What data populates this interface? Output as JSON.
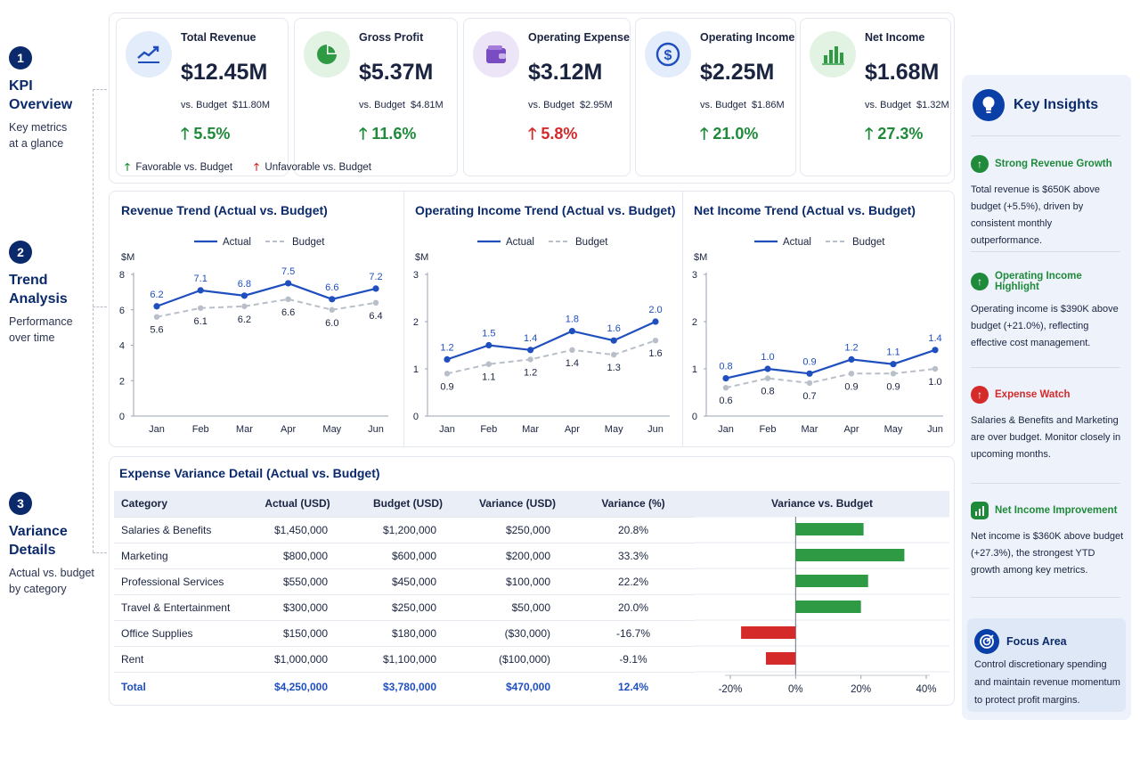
{
  "steps": [
    {
      "num": "1",
      "title": "KPI\nOverview",
      "subtitle": "Key metrics\nat a glance"
    },
    {
      "num": "2",
      "title": "Trend\nAnalysis",
      "subtitle": "Performance\nover time"
    },
    {
      "num": "3",
      "title": "Variance\nDetails",
      "subtitle": "Actual vs. budget\nby category"
    }
  ],
  "kpis": [
    {
      "title": "Total Revenue",
      "value": "$12.45M",
      "budget_label": "vs. Budget",
      "budget": "$11.80M",
      "change": "5.5%",
      "status": "favorable",
      "icon": "trend-line-icon"
    },
    {
      "title": "Gross Profit",
      "value": "$5.37M",
      "budget_label": "vs. Budget",
      "budget": "$4.81M",
      "change": "11.6%",
      "status": "favorable",
      "icon": "pie-chart-icon"
    },
    {
      "title": "Operating Expense",
      "value": "$3.12M",
      "budget_label": "vs. Budget",
      "budget": "$2.95M",
      "change": "5.8%",
      "status": "unfavorable",
      "icon": "wallet-icon"
    },
    {
      "title": "Operating Income",
      "value": "$2.25M",
      "budget_label": "vs. Budget",
      "budget": "$1.86M",
      "change": "21.0%",
      "status": "favorable",
      "icon": "dollar-circle-icon"
    },
    {
      "title": "Net Income",
      "value": "$1.68M",
      "budget_label": "vs. Budget",
      "budget": "$1.32M",
      "change": "27.3%",
      "status": "favorable",
      "icon": "bar-chart-icon"
    }
  ],
  "kpi_legend": {
    "favorable": "Favorable vs. Budget",
    "unfavorable": "Unfavorable vs. Budget"
  },
  "colors": {
    "favorable": "#1f8a3a",
    "unfavorable": "#d42a2a",
    "actual": "#1f4fbf",
    "budget": "#b9bfc9",
    "navy": "#0b2a6b"
  },
  "chart_data": [
    {
      "type": "line",
      "title": "Revenue Trend (Actual vs. Budget)",
      "ylabel": "$M",
      "categories": [
        "Jan",
        "Feb",
        "Mar",
        "Apr",
        "May",
        "Jun"
      ],
      "yticks": [
        "0",
        "2",
        "4",
        "6",
        "8"
      ],
      "ylim": [
        0,
        8
      ],
      "series": [
        {
          "name": "Actual",
          "values": [
            6.2,
            7.1,
            6.8,
            7.5,
            6.6,
            7.2
          ]
        },
        {
          "name": "Budget",
          "values": [
            5.6,
            6.1,
            6.2,
            6.6,
            6.0,
            6.4
          ]
        }
      ],
      "labels": {
        "Actual": [
          "6.2",
          "7.1",
          "6.8",
          "7.5",
          "6.6",
          "7.2"
        ],
        "Budget": [
          "5.6",
          "6.1",
          "6.2",
          "6.6",
          "6.0",
          "6.4"
        ]
      },
      "grid": false,
      "legend": "top-center"
    },
    {
      "type": "line",
      "title": "Operating Income Trend (Actual vs. Budget)",
      "ylabel": "$M",
      "categories": [
        "Jan",
        "Feb",
        "Mar",
        "Apr",
        "May",
        "Jun"
      ],
      "yticks": [
        "0",
        "1",
        "2",
        "3"
      ],
      "ylim": [
        0,
        3
      ],
      "series": [
        {
          "name": "Actual",
          "values": [
            1.2,
            1.5,
            1.4,
            1.8,
            1.6,
            2.0
          ]
        },
        {
          "name": "Budget",
          "values": [
            0.9,
            1.1,
            1.2,
            1.4,
            1.3,
            1.6
          ]
        }
      ],
      "labels": {
        "Actual": [
          "1.2",
          "1.5",
          "1.4",
          "1.8",
          "1.6",
          "2.0"
        ],
        "Budget": [
          "0.9",
          "1.1",
          "1.2",
          "1.4",
          "1.3",
          "1.6"
        ]
      },
      "grid": false,
      "legend": "top-center"
    },
    {
      "type": "line",
      "title": "Net Income Trend (Actual vs. Budget)",
      "ylabel": "$M",
      "categories": [
        "Jan",
        "Feb",
        "Mar",
        "Apr",
        "May",
        "Jun"
      ],
      "yticks": [
        "0",
        "1",
        "2",
        "3"
      ],
      "ylim": [
        0,
        3
      ],
      "series": [
        {
          "name": "Actual",
          "values": [
            0.8,
            1.0,
            0.9,
            1.2,
            1.1,
            1.4
          ]
        },
        {
          "name": "Budget",
          "values": [
            0.6,
            0.8,
            0.7,
            0.9,
            0.9,
            1.0
          ]
        }
      ],
      "labels": {
        "Actual": [
          "0.8",
          "1.0",
          "0.9",
          "1.2",
          "1.1",
          "1.4"
        ],
        "Budget": [
          "0.6",
          "0.8",
          "0.7",
          "0.9",
          "0.9",
          "1.0"
        ]
      },
      "grid": false,
      "legend": "top-center"
    },
    {
      "type": "bar",
      "title": "Variance vs. Budget",
      "orientation": "horizontal",
      "categories": [
        "Salaries & Benefits",
        "Marketing",
        "Professional Services",
        "Travel & Entertainment",
        "Office Supplies",
        "Rent"
      ],
      "values": [
        20.8,
        33.3,
        22.2,
        20.0,
        -16.7,
        -9.1
      ],
      "xticks": [
        "-20%",
        "0%",
        "20%",
        "40%"
      ],
      "xlim": [
        -20,
        40
      ]
    }
  ],
  "variance": {
    "title": "Expense Variance Detail (Actual vs. Budget)",
    "headers": [
      "Category",
      "Actual (USD)",
      "Budget (USD)",
      "Variance (USD)",
      "Variance (%)",
      "Variance vs. Budget"
    ],
    "rows": [
      [
        "Salaries & Benefits",
        "$1,450,000",
        "$1,200,000",
        "$250,000",
        "20.8%"
      ],
      [
        "Marketing",
        "$800,000",
        "$600,000",
        "$200,000",
        "33.3%"
      ],
      [
        "Professional Services",
        "$550,000",
        "$450,000",
        "$100,000",
        "22.2%"
      ],
      [
        "Travel & Entertainment",
        "$300,000",
        "$250,000",
        "$50,000",
        "20.0%"
      ],
      [
        "Office Supplies",
        "$150,000",
        "$180,000",
        "($30,000)",
        "-16.7%"
      ],
      [
        "Rent",
        "$1,000,000",
        "$1,100,000",
        "($100,000)",
        "-9.1%"
      ]
    ],
    "total": [
      "Total",
      "$4,250,000",
      "$3,780,000",
      "$470,000",
      "12.4%"
    ]
  },
  "insights": {
    "title": "Key Insights",
    "items": [
      {
        "title": "Strong Revenue Growth",
        "body": "Total revenue is $650K above budget (+5.5%), driven by consistent monthly outperformance.",
        "color": "#1f8a3a",
        "icon": "arrow-up-icon"
      },
      {
        "title": "Operating Income Highlight",
        "body": "Operating income is $390K above budget (+21.0%), reflecting effective cost management.",
        "color": "#1f8a3a",
        "icon": "arrow-up-icon"
      },
      {
        "title": "Expense Watch",
        "body": "Salaries & Benefits and Marketing are over budget. Monitor closely in upcoming months.",
        "color": "#d42a2a",
        "icon": "arrow-up-icon"
      },
      {
        "title": "Net Income Improvement",
        "body": "Net income is $360K above budget (+27.3%), the strongest YTD growth among key metrics.",
        "color": "#1f8a3a",
        "icon": "bar-chart-icon"
      }
    ],
    "focus": {
      "title": "Focus Area",
      "body": "Control discretionary spending and maintain revenue momentum to protect profit margins.",
      "icon": "target-icon"
    }
  }
}
